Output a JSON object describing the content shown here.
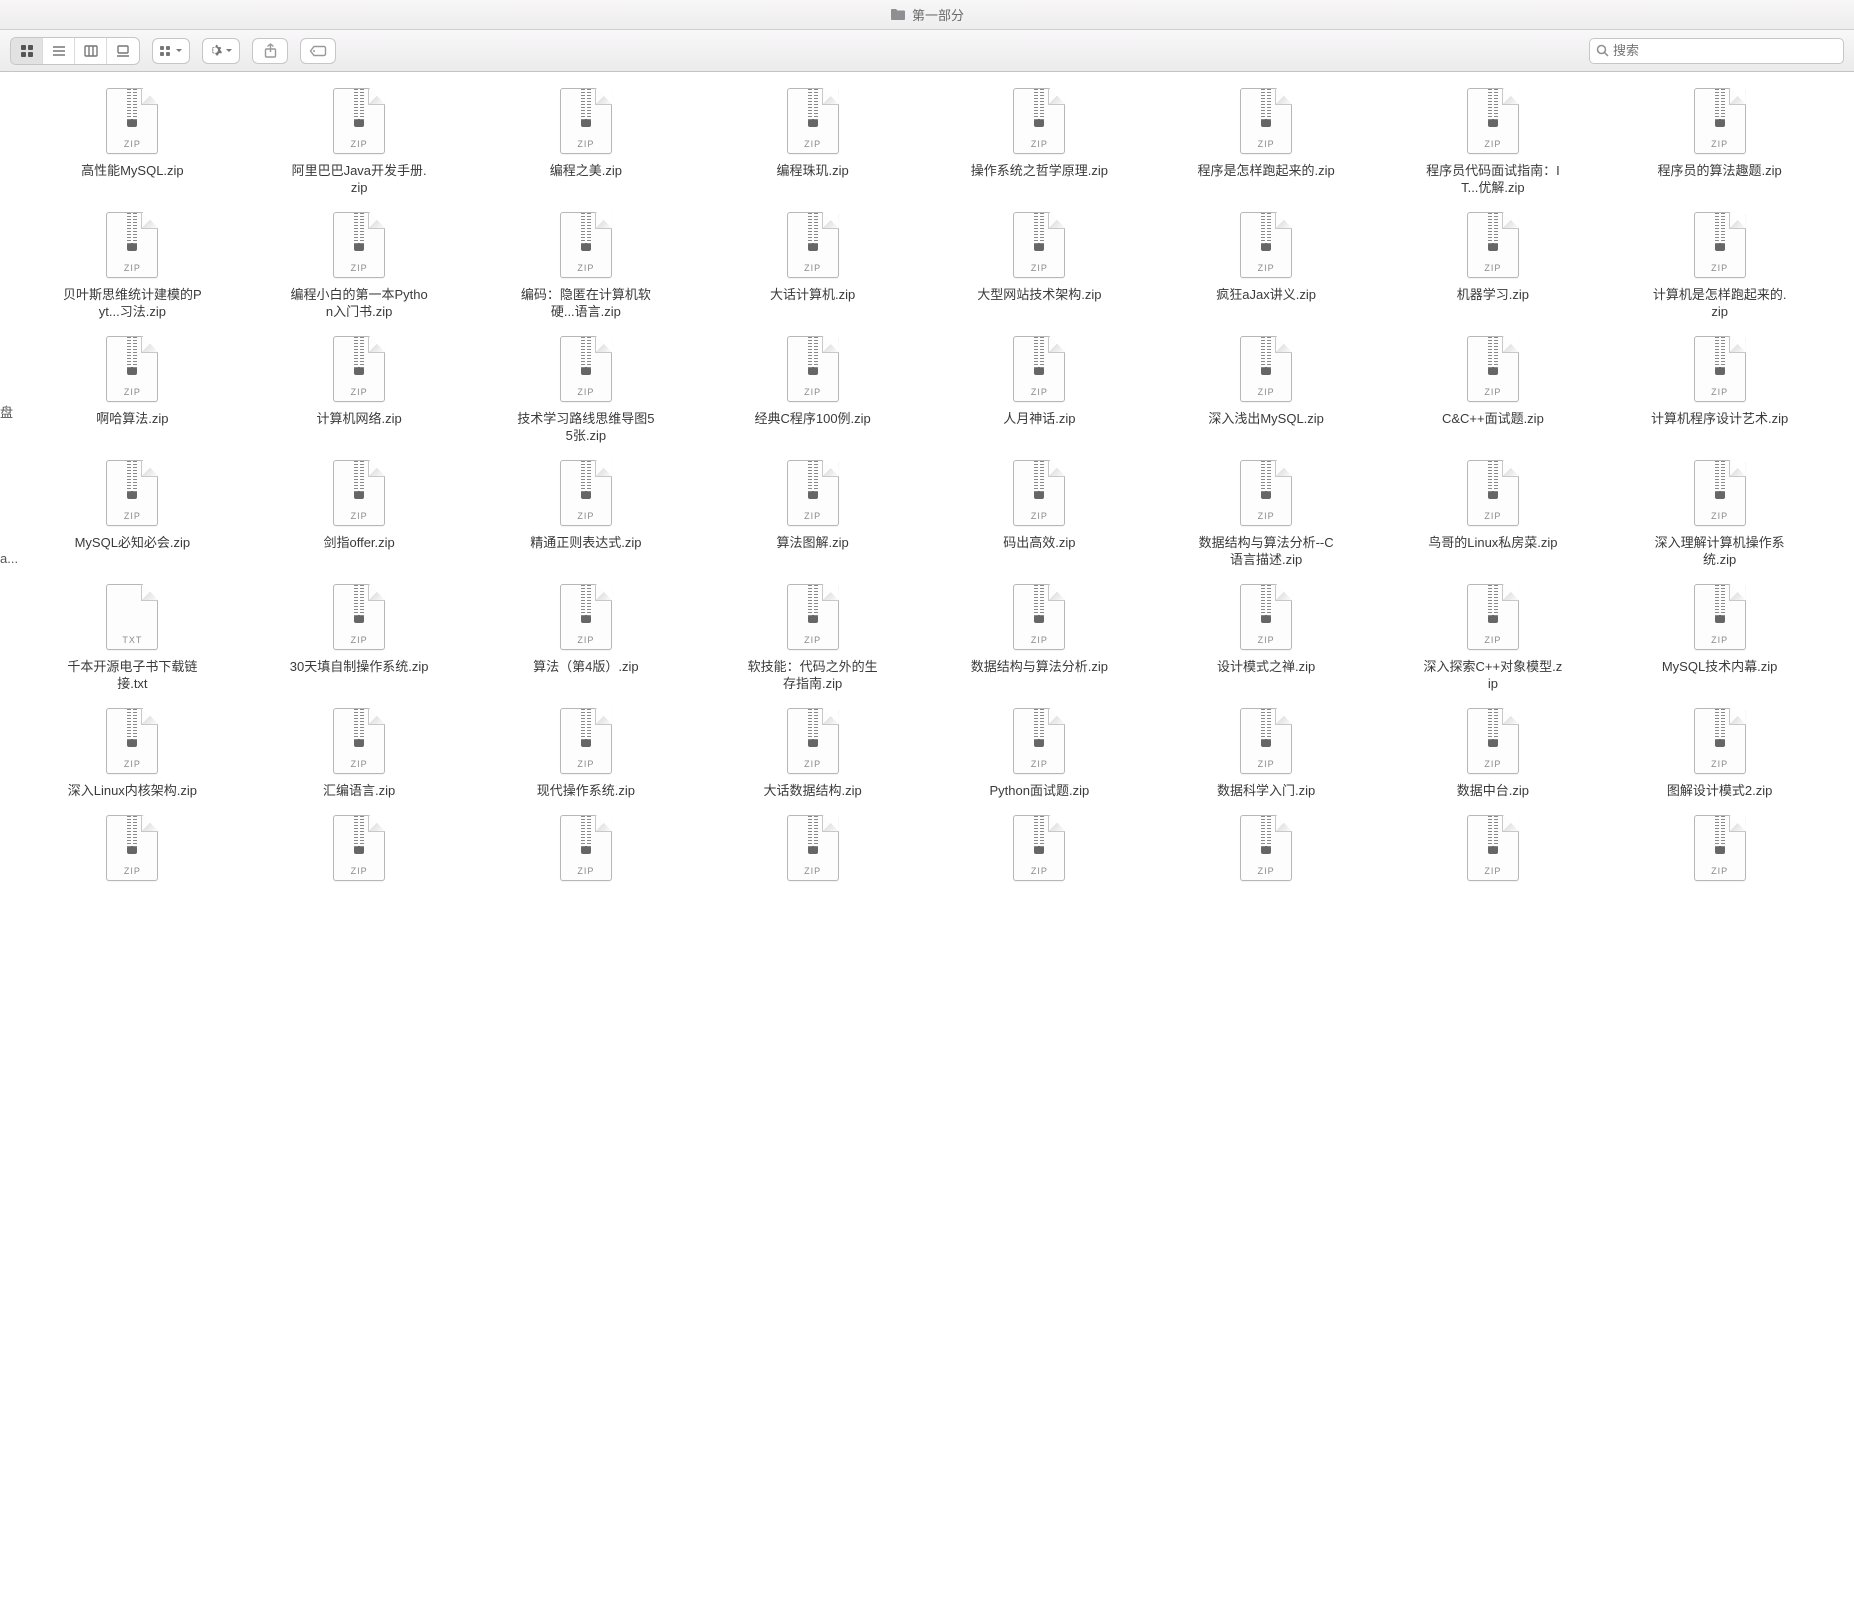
{
  "window": {
    "title": "第一部分",
    "folderColor": "#8e8e93"
  },
  "toolbar": {
    "searchPlaceholder": "搜索",
    "viewMode": "icon"
  },
  "sidebar": {
    "stubs": [
      "盘",
      "a..."
    ]
  },
  "files": [
    {
      "name": "高性能MySQL.zip",
      "type": "ZIP"
    },
    {
      "name": "阿里巴巴Java开发手册.zip",
      "type": "ZIP"
    },
    {
      "name": "编程之美.zip",
      "type": "ZIP"
    },
    {
      "name": "编程珠玑.zip",
      "type": "ZIP"
    },
    {
      "name": "操作系统之哲学原理.zip",
      "type": "ZIP"
    },
    {
      "name": "程序是怎样跑起来的.zip",
      "type": "ZIP"
    },
    {
      "name": "程序员代码面试指南：IT...优解.zip",
      "type": "ZIP"
    },
    {
      "name": "程序员的算法趣题.zip",
      "type": "ZIP"
    },
    {
      "name": "贝叶斯思维统计建模的Pyt...习法.zip",
      "type": "ZIP"
    },
    {
      "name": "编程小白的第一本Python入门书.zip",
      "type": "ZIP"
    },
    {
      "name": "编码：隐匿在计算机软硬...语言.zip",
      "type": "ZIP"
    },
    {
      "name": "大话计算机.zip",
      "type": "ZIP"
    },
    {
      "name": "大型网站技术架构.zip",
      "type": "ZIP"
    },
    {
      "name": "疯狂aJax讲义.zip",
      "type": "ZIP"
    },
    {
      "name": "机器学习.zip",
      "type": "ZIP"
    },
    {
      "name": "计算机是怎样跑起来的.zip",
      "type": "ZIP"
    },
    {
      "name": "啊哈算法.zip",
      "type": "ZIP"
    },
    {
      "name": "计算机网络.zip",
      "type": "ZIP"
    },
    {
      "name": "技术学习路线思维导图55张.zip",
      "type": "ZIP"
    },
    {
      "name": "经典C程序100例.zip",
      "type": "ZIP"
    },
    {
      "name": "人月神话.zip",
      "type": "ZIP"
    },
    {
      "name": "深入浅出MySQL.zip",
      "type": "ZIP"
    },
    {
      "name": "C&C++面试题.zip",
      "type": "ZIP"
    },
    {
      "name": "计算机程序设计艺术.zip",
      "type": "ZIP"
    },
    {
      "name": "MySQL必知必会.zip",
      "type": "ZIP"
    },
    {
      "name": "剑指offer.zip",
      "type": "ZIP"
    },
    {
      "name": "精通正则表达式.zip",
      "type": "ZIP"
    },
    {
      "name": "算法图解.zip",
      "type": "ZIP"
    },
    {
      "name": "码出高效.zip",
      "type": "ZIP"
    },
    {
      "name": "数据结构与算法分析--C语言描述.zip",
      "type": "ZIP"
    },
    {
      "name": "鸟哥的Linux私房菜.zip",
      "type": "ZIP"
    },
    {
      "name": "深入理解计算机操作系统.zip",
      "type": "ZIP"
    },
    {
      "name": "千本开源电子书下载链接.txt",
      "type": "TXT"
    },
    {
      "name": "30天填自制操作系统.zip",
      "type": "ZIP"
    },
    {
      "name": "算法（第4版）.zip",
      "type": "ZIP"
    },
    {
      "name": "软技能：代码之外的生存指南.zip",
      "type": "ZIP"
    },
    {
      "name": "数据结构与算法分析.zip",
      "type": "ZIP"
    },
    {
      "name": "设计模式之禅.zip",
      "type": "ZIP"
    },
    {
      "name": "深入探索C++对象模型.zip",
      "type": "ZIP"
    },
    {
      "name": "MySQL技术内幕.zip",
      "type": "ZIP"
    },
    {
      "name": "深入Linux内核架构.zip",
      "type": "ZIP"
    },
    {
      "name": "汇编语言.zip",
      "type": "ZIP"
    },
    {
      "name": "现代操作系统.zip",
      "type": "ZIP"
    },
    {
      "name": "大话数据结构.zip",
      "type": "ZIP"
    },
    {
      "name": "Python面试题.zip",
      "type": "ZIP"
    },
    {
      "name": "数据科学入门.zip",
      "type": "ZIP"
    },
    {
      "name": "数据中台.zip",
      "type": "ZIP"
    },
    {
      "name": "图解设计模式2.zip",
      "type": "ZIP"
    },
    {
      "name": "",
      "type": "ZIP"
    },
    {
      "name": "",
      "type": "ZIP"
    },
    {
      "name": "",
      "type": "ZIP"
    },
    {
      "name": "",
      "type": "ZIP"
    },
    {
      "name": "",
      "type": "ZIP"
    },
    {
      "name": "",
      "type": "ZIP"
    },
    {
      "name": "",
      "type": "ZIP"
    },
    {
      "name": "",
      "type": "ZIP"
    }
  ],
  "colors": {
    "background": "#ffffff",
    "toolbarTop": "#f9f8f9",
    "toolbarBottom": "#ecebec",
    "border": "#c7c6c7",
    "text": "#3a3a3a",
    "typeText": "#8a8a8a"
  }
}
